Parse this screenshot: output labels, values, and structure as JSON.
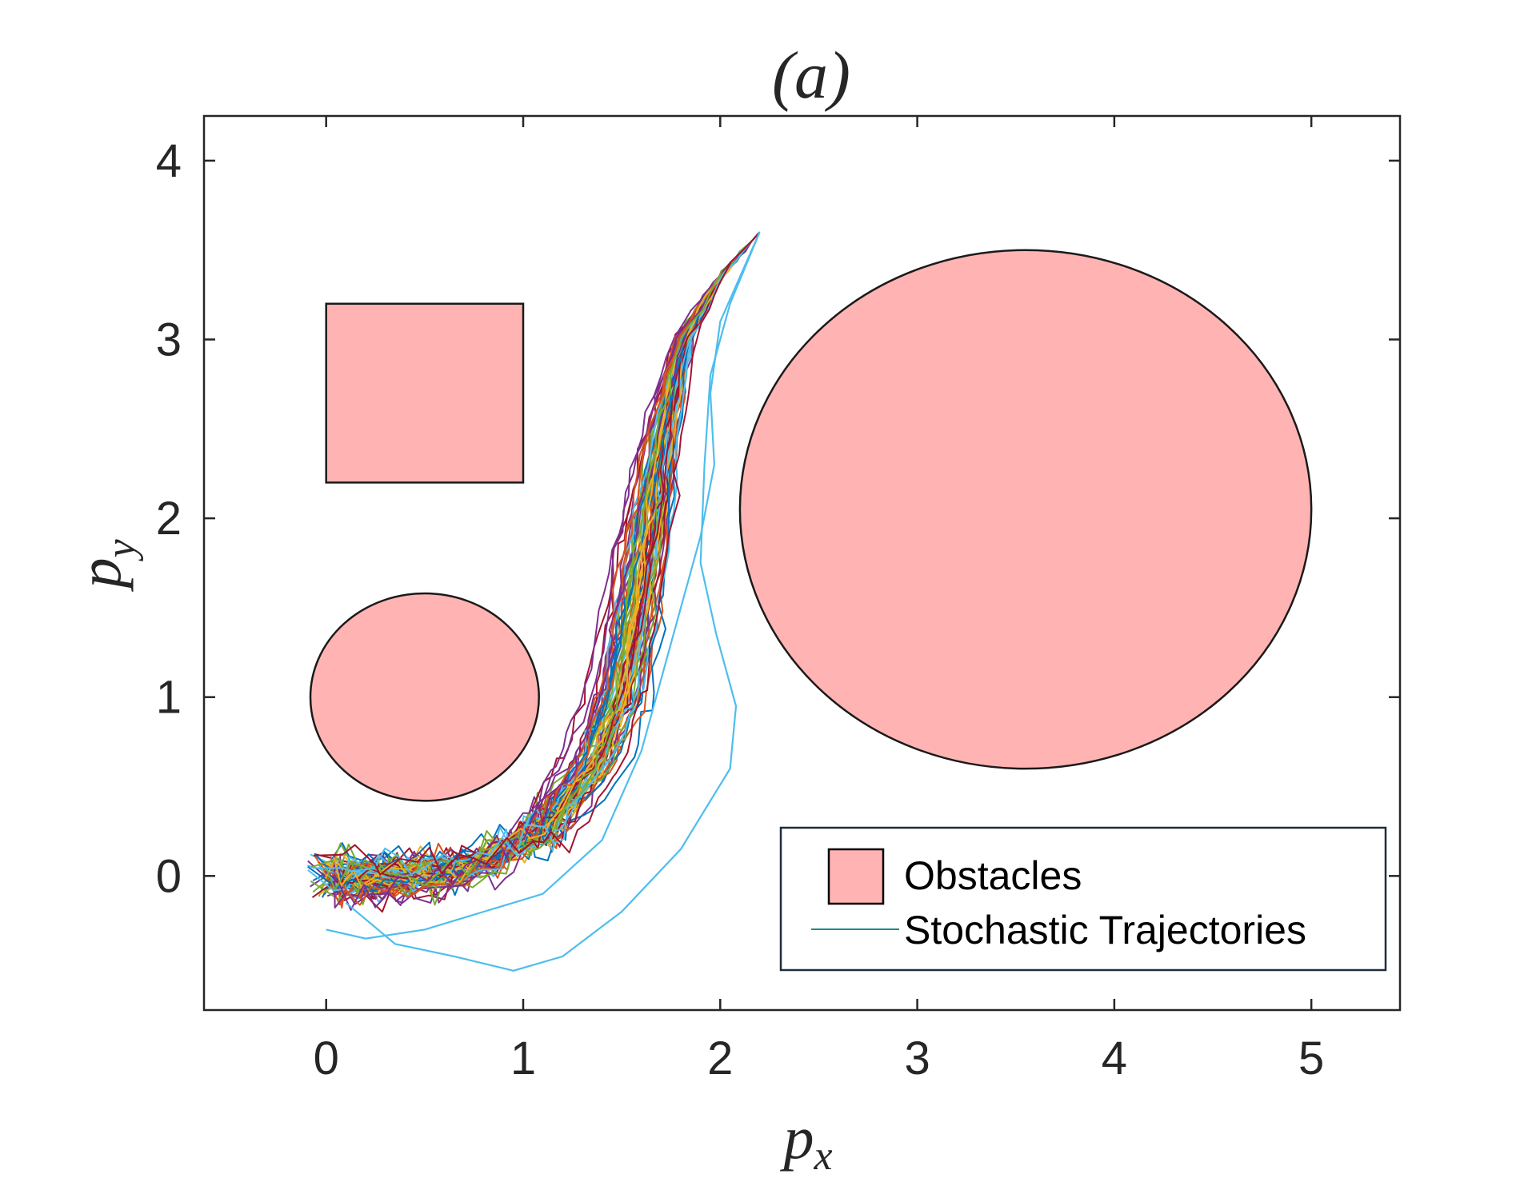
{
  "chart_data": {
    "type": "line",
    "title": "(a)",
    "xlabel": "p",
    "xlabel_sub": "x",
    "ylabel": "p",
    "ylabel_sub": "y",
    "xlim": [
      -0.62,
      5.45
    ],
    "ylim": [
      -0.75,
      4.25
    ],
    "xticks": [
      0,
      1,
      2,
      3,
      4,
      5
    ],
    "yticks": [
      0,
      1,
      2,
      3,
      4
    ],
    "grid": false,
    "legend": {
      "position": "bottom-right",
      "entries": [
        {
          "label": "Obstacles",
          "kind": "patch",
          "color": "#ffb3b3"
        },
        {
          "label": "Stochastic Trajectories",
          "kind": "line",
          "color": "#1f8a8a"
        }
      ]
    },
    "obstacles": [
      {
        "shape": "rectangle",
        "x": [
          0,
          1
        ],
        "y": [
          2.2,
          3.2
        ],
        "color": "#ffb3b3"
      },
      {
        "shape": "circle",
        "center": [
          0.5,
          1.0
        ],
        "radius": 0.58,
        "color": "#ffb3b3"
      },
      {
        "shape": "circle",
        "center": [
          3.55,
          2.05
        ],
        "radius": 1.45,
        "color": "#ffb3b3"
      }
    ],
    "trajectory_bundle": {
      "count": 70,
      "start": [
        0.0,
        0.0
      ],
      "goal": [
        2.2,
        3.6
      ],
      "colors": [
        "#0072bd",
        "#d95319",
        "#edb120",
        "#7e2f8e",
        "#77ac30",
        "#4dbeee",
        "#a2142f"
      ]
    },
    "series": [
      {
        "name": "outlier-1",
        "color": "#4dbeee",
        "x": [
          0.1,
          0.35,
          0.65,
          0.95,
          1.2,
          1.5,
          1.8,
          2.05,
          2.08,
          1.98,
          1.9,
          1.92,
          1.95,
          2.05,
          2.2
        ],
        "y": [
          -0.15,
          -0.38,
          -0.45,
          -0.53,
          -0.45,
          -0.2,
          0.15,
          0.6,
          0.95,
          1.35,
          1.75,
          2.3,
          2.8,
          3.2,
          3.6
        ]
      },
      {
        "name": "outlier-2",
        "color": "#4dbeee",
        "x": [
          0.0,
          0.2,
          0.5,
          0.8,
          1.1,
          1.4,
          1.6,
          1.75,
          1.9,
          1.97,
          1.95,
          2.0,
          2.2
        ],
        "y": [
          -0.3,
          -0.35,
          -0.3,
          -0.2,
          -0.1,
          0.2,
          0.7,
          1.3,
          1.9,
          2.3,
          2.7,
          3.1,
          3.6
        ]
      }
    ]
  }
}
